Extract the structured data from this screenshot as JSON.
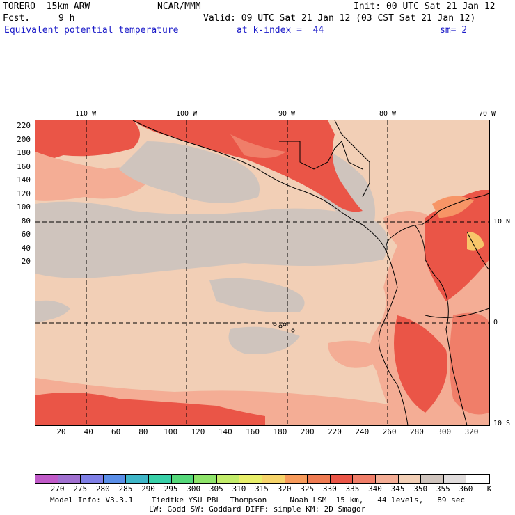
{
  "header": {
    "model": "TORERO  15km ARW",
    "org": "NCAR/MMM",
    "init": "Init: 00 UTC Sat 21 Jan 12",
    "fcst_label": "Fcst.",
    "fcst_value": "9 h",
    "valid": "Valid: 09 UTC Sat 21 Jan 12 (03 CST Sat 21 Jan 12)",
    "field": "Equivalent potential temperature",
    "level": "at k-index =  44",
    "smoothing": "sm= 2"
  },
  "map": {
    "lon_labels": [
      "110 W",
      "100 W",
      "90 W",
      "80 W",
      "70 W"
    ],
    "lat_labels": [
      "10 N",
      "0",
      "10 S"
    ],
    "y_ticks": [
      "220",
      "200",
      "180",
      "160",
      "140",
      "120",
      "100",
      "80",
      "60",
      "40",
      "20"
    ],
    "x_ticks": [
      "20",
      "40",
      "60",
      "80",
      "100",
      "120",
      "140",
      "160",
      "180",
      "200",
      "220",
      "240",
      "260",
      "280",
      "300",
      "320"
    ],
    "colors": {
      "c345": "#f2cfb6",
      "c350": "#cfc4bd",
      "c340": "#f4ad95",
      "c335": "#f07e69",
      "c330": "#ea5547",
      "c325": "#f79566",
      "c320": "#f8c66a",
      "border": "#000000"
    }
  },
  "colorbar": {
    "values": [
      "270",
      "275",
      "280",
      "285",
      "290",
      "295",
      "300",
      "305",
      "310",
      "315",
      "320",
      "325",
      "330",
      "335",
      "340",
      "345",
      "350",
      "355",
      "360"
    ],
    "unit": "K",
    "colors": [
      "#c05ac8",
      "#a070d0",
      "#7f7fe6",
      "#5a8ee8",
      "#3fb6c8",
      "#38d0a8",
      "#55d87a",
      "#8ee46a",
      "#c2ec6a",
      "#e8ef6a",
      "#f6d46a",
      "#f79a5a",
      "#ef7b52",
      "#ea5547",
      "#f07e69",
      "#f4ad95",
      "#f2cfb6",
      "#cfc4bd",
      "#e0dcdc",
      "#ffffff"
    ]
  },
  "footer": {
    "line1": "Model Info: V3.3.1    Tiedtke YSU PBL  Thompson     Noah LSM  15 km,   44 levels,   89 sec",
    "line2": "LW: Godd SW: Goddard DIFF: simple KM: 2D Smagor"
  }
}
